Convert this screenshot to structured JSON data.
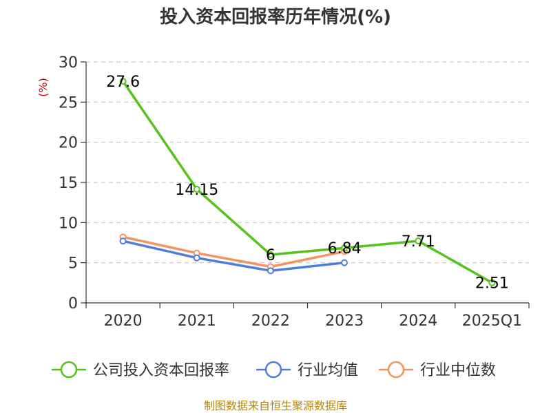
{
  "chart_data": {
    "type": "line",
    "title": "投入资本回报率历年情况(%)",
    "ylabel": "(%)",
    "categories": [
      "2020",
      "2021",
      "2022",
      "2023",
      "2024",
      "2025Q1"
    ],
    "ylim": [
      0,
      30
    ],
    "yticks": [
      0,
      5,
      10,
      15,
      20,
      25,
      30
    ],
    "grid": true,
    "legend_position": "bottom",
    "series": [
      {
        "name": "公司投入资本回报率",
        "color": "#52c41a",
        "values": [
          27.6,
          14.15,
          6,
          6.84,
          7.71,
          2.51
        ],
        "labels": [
          "27.6",
          "14.15",
          "6",
          "6.84",
          "7.71",
          "2.51"
        ]
      },
      {
        "name": "行业均值",
        "color": "#4e7fd8",
        "values": [
          7.7,
          5.6,
          4.0,
          5.0,
          null,
          null
        ]
      },
      {
        "name": "行业中位数",
        "color": "#f59360",
        "values": [
          8.2,
          6.2,
          4.5,
          6.4,
          null,
          null
        ]
      }
    ],
    "source": "制图数据来自恒生聚源数据库"
  }
}
